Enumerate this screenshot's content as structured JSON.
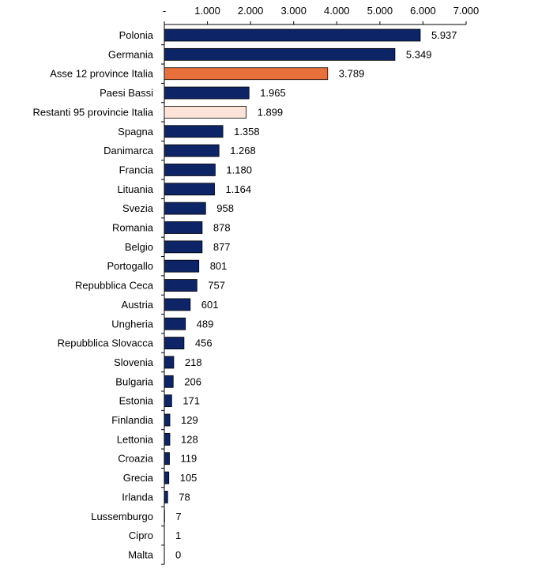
{
  "chart_data": {
    "type": "bar",
    "orientation": "horizontal",
    "title": "",
    "xlabel": "",
    "ylabel": "",
    "xlim": [
      0,
      7000
    ],
    "x_tick_labels": [
      "-",
      "1.000",
      "2.000",
      "3.000",
      "4.000",
      "5.000",
      "6.000",
      "7.000"
    ],
    "x_tick_values": [
      0,
      1000,
      2000,
      3000,
      4000,
      5000,
      6000,
      7000
    ],
    "axis_position": "top",
    "grid": false,
    "legend": "none",
    "categories": [
      "Polonia",
      "Germania",
      "Asse 12 province Italia",
      "Paesi Bassi",
      "Restanti 95 provincie Italia",
      "Spagna",
      "Danimarca",
      "Francia",
      "Lituania",
      "Svezia",
      "Romania",
      "Belgio",
      "Portogallo",
      "Repubblica Ceca",
      "Austria",
      "Ungheria",
      "Repubblica Slovacca",
      "Slovenia",
      "Bulgaria",
      "Estonia",
      "Finlandia",
      "Lettonia",
      "Croazia",
      "Grecia",
      "Irlanda",
      "Lussemburgo",
      "Cipro",
      "Malta"
    ],
    "values": [
      5937,
      5349,
      3789,
      1965,
      1899,
      1358,
      1268,
      1180,
      1164,
      958,
      878,
      877,
      801,
      757,
      601,
      489,
      456,
      218,
      206,
      171,
      129,
      128,
      119,
      105,
      78,
      7,
      1,
      0
    ],
    "value_labels": [
      "5.937",
      "5.349",
      "3.789",
      "1.965",
      "1.899",
      "1.358",
      "1.268",
      "1.180",
      "1.164",
      "958",
      "878",
      "877",
      "801",
      "757",
      "601",
      "489",
      "456",
      "218",
      "206",
      "171",
      "129",
      "128",
      "119",
      "105",
      "78",
      "7",
      "1",
      "0"
    ],
    "bar_colors": [
      "#0d2566",
      "#0d2566",
      "#e8703a",
      "#0d2566",
      "#fde3d8",
      "#0d2566",
      "#0d2566",
      "#0d2566",
      "#0d2566",
      "#0d2566",
      "#0d2566",
      "#0d2566",
      "#0d2566",
      "#0d2566",
      "#0d2566",
      "#0d2566",
      "#0d2566",
      "#0d2566",
      "#0d2566",
      "#0d2566",
      "#0d2566",
      "#0d2566",
      "#0d2566",
      "#0d2566",
      "#0d2566",
      "#0d2566",
      "#0d2566",
      "#0d2566"
    ]
  }
}
